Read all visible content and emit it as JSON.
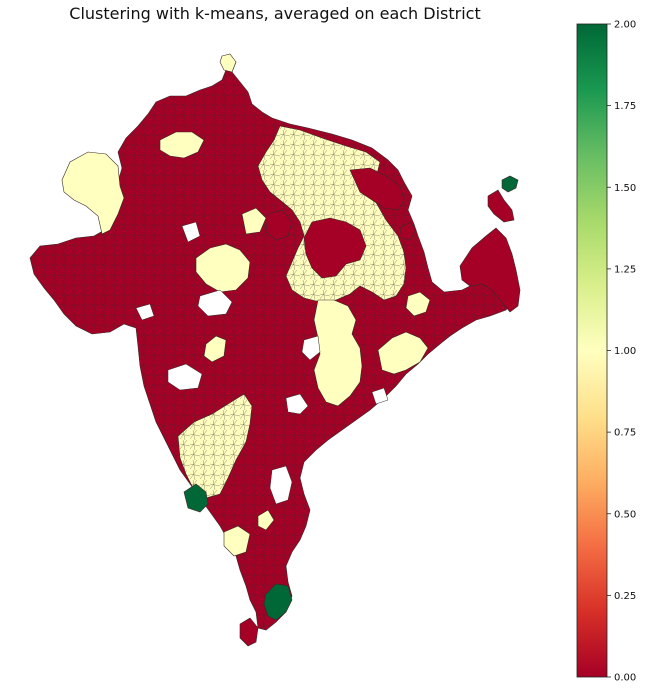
{
  "title": "Clustering with k-means, averaged on each District",
  "colors": {
    "cluster_0": "#a50026",
    "cluster_1": "#ffffbf",
    "cluster_2": "#006837",
    "border": "#3a2a2a"
  },
  "colorbar": {
    "min": 0.0,
    "max": 2.0,
    "colormap": "RdYlGn",
    "stops": [
      "#a50026",
      "#d73027",
      "#f46d43",
      "#fdae61",
      "#fee08b",
      "#ffffbf",
      "#d9ef8b",
      "#a6d96a",
      "#66bd63",
      "#1a9850",
      "#006837"
    ],
    "ticks": [
      "0.00",
      "0.25",
      "0.50",
      "0.75",
      "1.00",
      "1.25",
      "1.50",
      "1.75",
      "2.00"
    ]
  },
  "legend_position": "right"
}
